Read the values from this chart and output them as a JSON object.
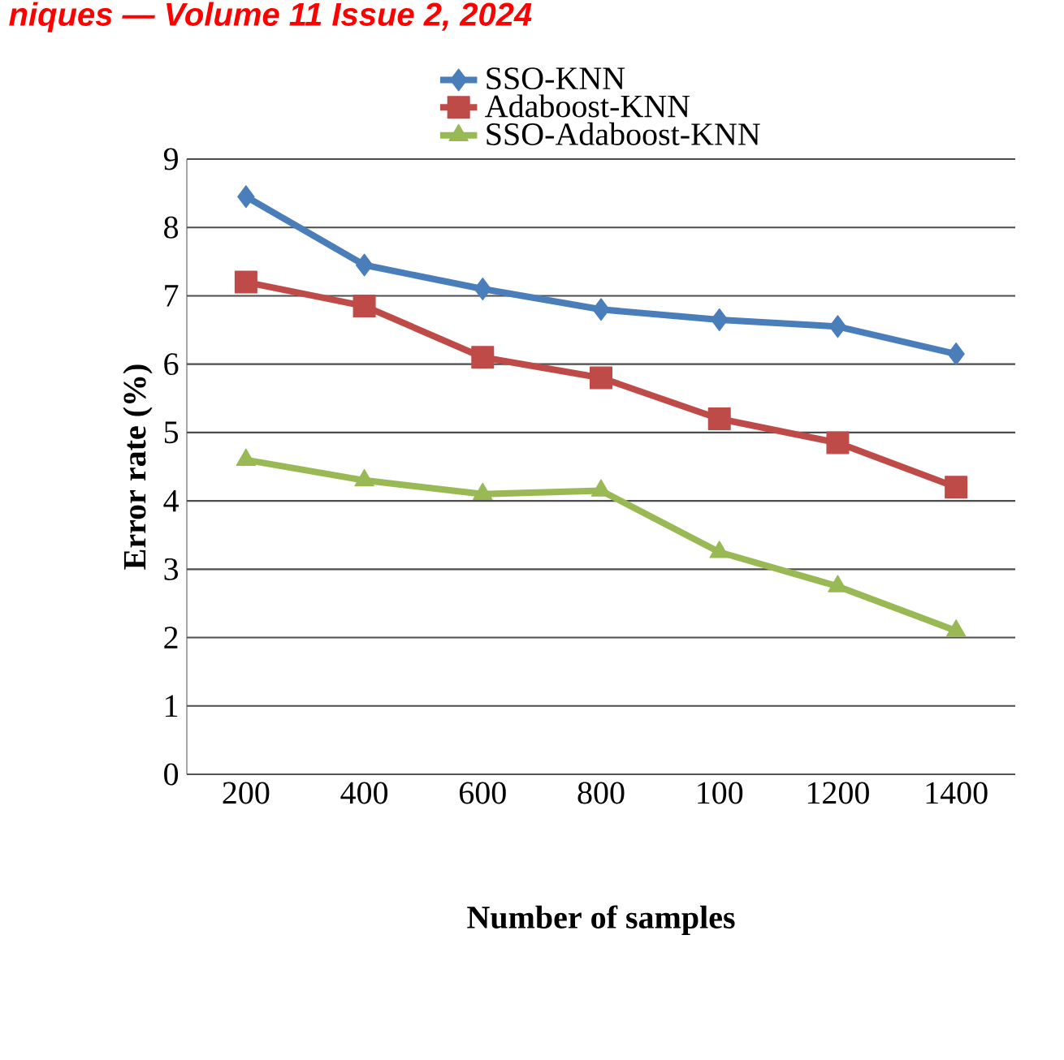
{
  "chart_data": {
    "type": "line",
    "annotations": [
      "niques — Volume 11 Issue 2, 2024"
    ],
    "xlabel": "Number of samples",
    "ylabel": "Error rate (%)",
    "categories": [
      "200",
      "400",
      "600",
      "800",
      "100",
      "1200",
      "1400"
    ],
    "ylim": [
      0,
      9
    ],
    "yticks": [
      0,
      1,
      2,
      3,
      4,
      5,
      6,
      7,
      8,
      9
    ],
    "grid": "y",
    "legend": "top",
    "series": [
      {
        "name": "SSO-KNN",
        "color": "#4a7ebb",
        "marker": "diamond",
        "values": [
          8.45,
          7.45,
          7.1,
          6.8,
          6.65,
          6.55,
          6.15
        ]
      },
      {
        "name": "Adaboost-KNN",
        "color": "#be4b48",
        "marker": "square",
        "values": [
          7.2,
          6.85,
          6.1,
          5.8,
          5.2,
          4.85,
          4.2
        ]
      },
      {
        "name": "SSO-Adaboost-KNN",
        "color": "#98b954",
        "marker": "triangle",
        "values": [
          4.6,
          4.3,
          4.1,
          4.15,
          3.25,
          2.75,
          2.1
        ]
      }
    ]
  }
}
